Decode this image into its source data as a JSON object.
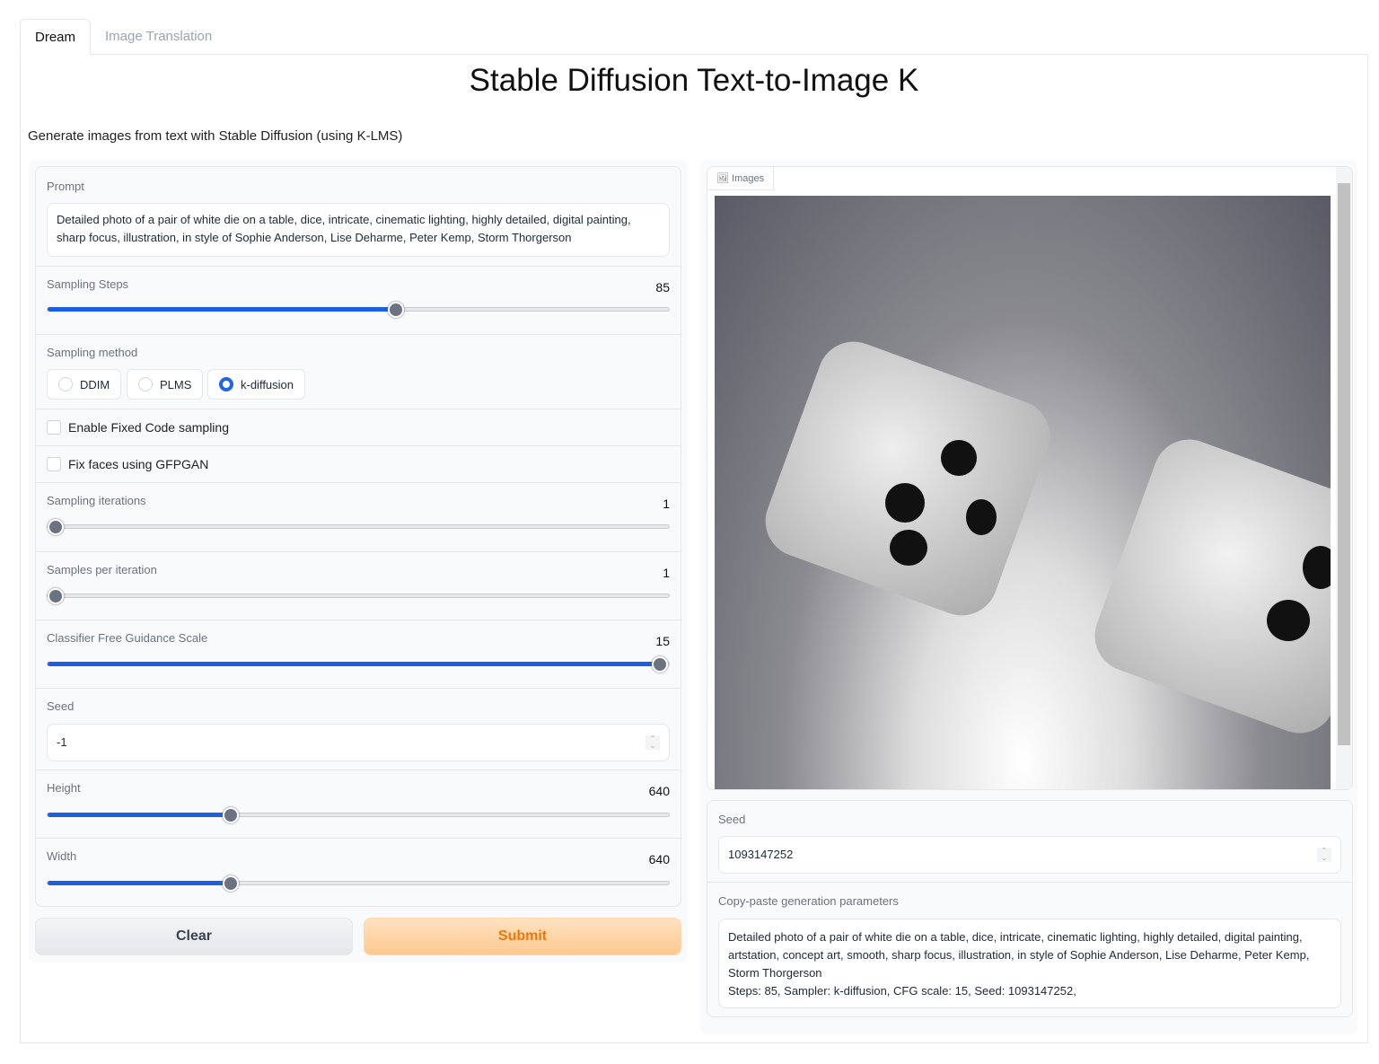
{
  "tabs": [
    {
      "label": "Dream",
      "active": true
    },
    {
      "label": "Image Translation",
      "active": false
    }
  ],
  "title": "Stable Diffusion Text-to-Image K",
  "description": "Generate images from text with Stable Diffusion (using K-LMS)",
  "inputs": {
    "prompt": {
      "label": "Prompt",
      "value": "Detailed photo of a pair of white die on a table, dice, intricate, cinematic lighting, highly detailed, digital painting, sharp focus, illustration, in style of Sophie Anderson, Lise Deharme, Peter Kemp, Storm Thorgerson"
    },
    "sampling_steps": {
      "label": "Sampling Steps",
      "value": "85",
      "fraction": 0.56
    },
    "sampling_method": {
      "label": "Sampling method",
      "options": [
        "DDIM",
        "PLMS",
        "k-diffusion"
      ],
      "selected": "k-diffusion"
    },
    "fixed_code": {
      "label": "Enable Fixed Code sampling",
      "checked": false
    },
    "gfpgan": {
      "label": "Fix faces using GFPGAN",
      "checked": false
    },
    "iterations": {
      "label": "Sampling iterations",
      "value": "1",
      "fraction": 0
    },
    "samples": {
      "label": "Samples per iteration",
      "value": "1",
      "fraction": 0
    },
    "cfg": {
      "label": "Classifier Free Guidance Scale",
      "value": "15",
      "fraction": 0.985
    },
    "seed": {
      "label": "Seed",
      "value": "-1"
    },
    "height": {
      "label": "Height",
      "value": "640",
      "fraction": 0.295
    },
    "width": {
      "label": "Width",
      "value": "640",
      "fraction": 0.295
    }
  },
  "buttons": {
    "clear": "Clear",
    "submit": "Submit"
  },
  "outputs": {
    "images_label": "Images",
    "seed": {
      "label": "Seed",
      "value": "1093147252"
    },
    "params": {
      "label": "Copy-paste generation parameters",
      "line1": "Detailed photo of a pair of white die on a table, dice, intricate, cinematic lighting, highly detailed, digital painting, artstation, concept art, smooth, sharp focus, illustration, in style of Sophie Anderson, Lise Deharme, Peter Kemp, Storm Thorgerson",
      "line2": "Steps: 85, Sampler: k-diffusion, CFG scale: 15, Seed: 1093147252,"
    }
  },
  "colors": {
    "accent": "#1d5fe0",
    "submit_bg": "#fdd5a7",
    "submit_text": "#ea780c"
  }
}
